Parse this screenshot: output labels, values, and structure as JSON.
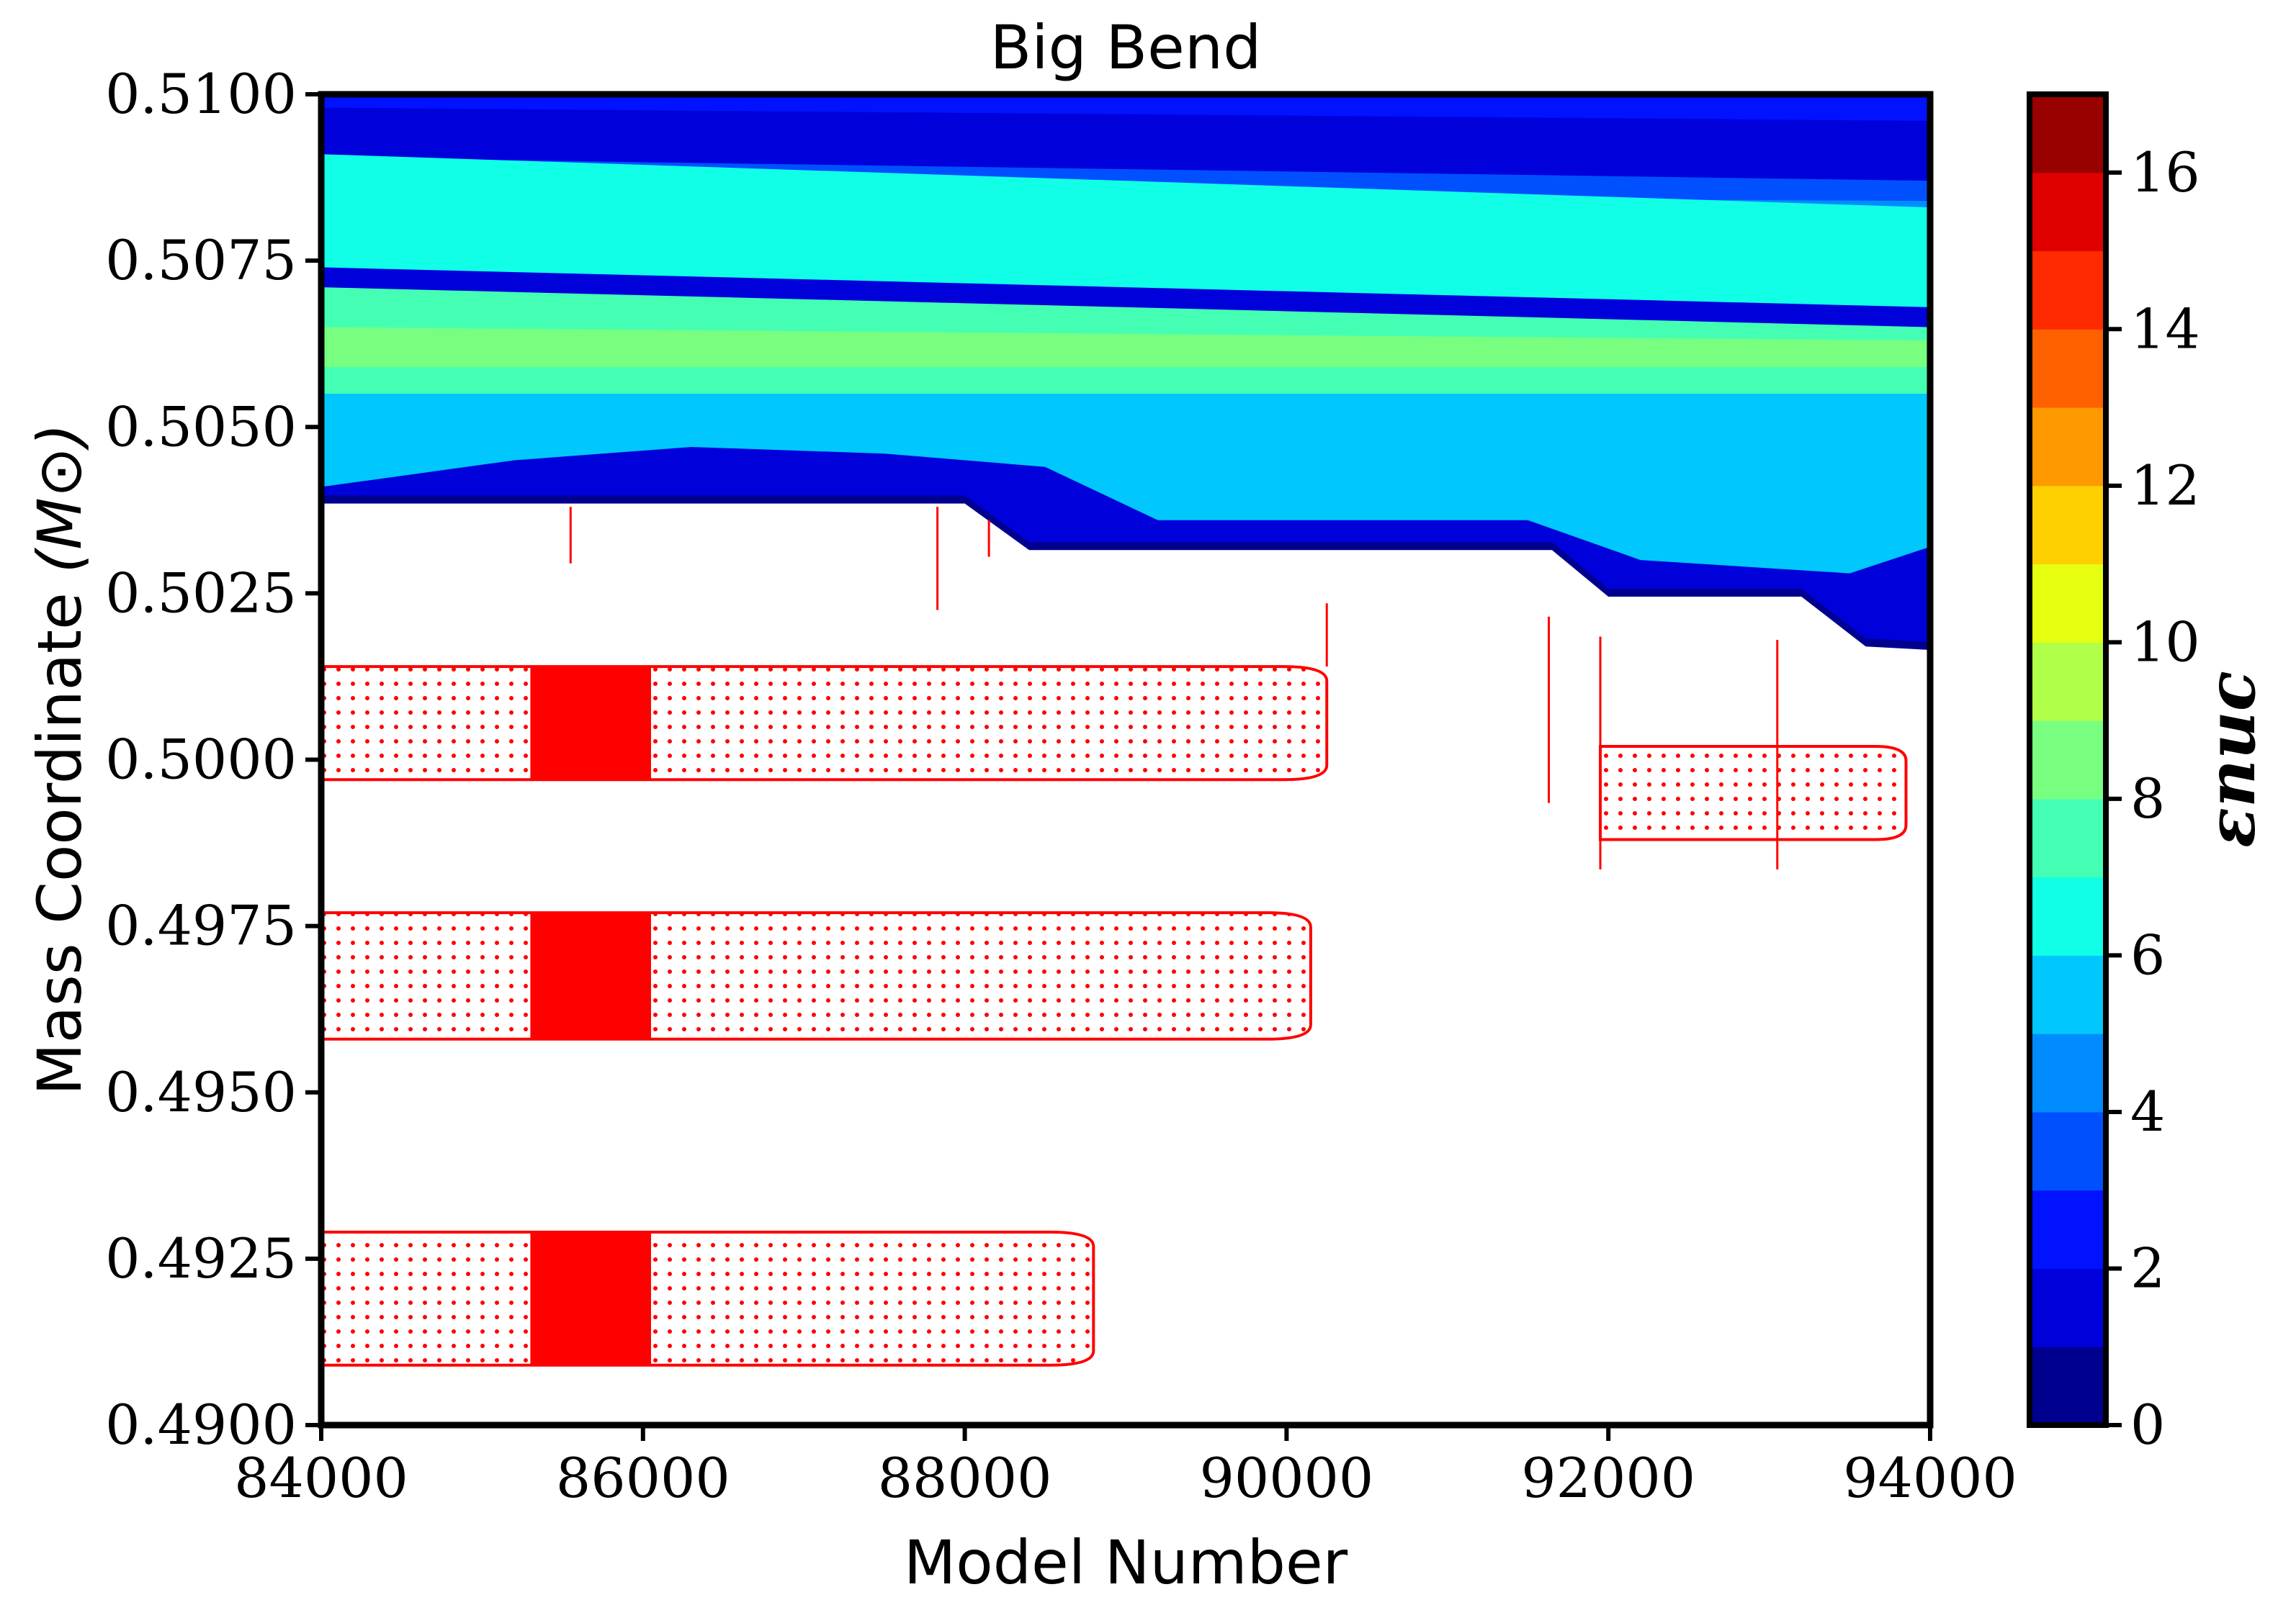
{
  "chart_data": {
    "type": "contour",
    "title": "Big Bend",
    "xlabel": "Model Number",
    "ylabel": "Mass Coordinate",
    "ylabel_symbol": "(M⊙)",
    "xlim": [
      84000,
      94000
    ],
    "ylim": [
      0.49,
      0.51
    ],
    "x_ticks": [
      "84000",
      "86000",
      "88000",
      "90000",
      "92000",
      "94000"
    ],
    "x_tick_values": [
      84000,
      86000,
      88000,
      90000,
      92000,
      94000
    ],
    "y_ticks": [
      "0.4900",
      "0.4925",
      "0.4950",
      "0.4975",
      "0.5000",
      "0.5025",
      "0.5050",
      "0.5075",
      "0.5100"
    ],
    "y_tick_values": [
      0.49,
      0.4925,
      0.495,
      0.4975,
      0.5,
      0.5025,
      0.505,
      0.5075,
      0.51
    ],
    "colorbar": {
      "label": "εnuc",
      "range": [
        0,
        17
      ],
      "ticks": [
        "0",
        "2",
        "4",
        "6",
        "8",
        "10",
        "12",
        "14",
        "16"
      ],
      "tick_values": [
        0,
        2,
        4,
        6,
        8,
        10,
        12,
        14,
        16
      ],
      "levels": [
        0,
        1,
        2,
        3,
        4,
        5,
        6,
        7,
        8,
        9,
        10,
        11,
        12,
        13,
        14,
        15,
        16,
        17
      ],
      "colors": [
        "#00008f",
        "#0000db",
        "#0012ff",
        "#0050ff",
        "#008cff",
        "#00c8ff",
        "#10ffe6",
        "#44ffb3",
        "#78ff80",
        "#b0ff48",
        "#e6ff10",
        "#ffd000",
        "#ff9900",
        "#ff6000",
        "#ff2a00",
        "#e00000",
        "#990000"
      ]
    },
    "burning_region": {
      "lower_boundary": [
        [
          84000,
          0.50385
        ],
        [
          88000,
          0.50385
        ],
        [
          88400,
          0.50315
        ],
        [
          91650,
          0.50315
        ],
        [
          92000,
          0.50245
        ],
        [
          93200,
          0.50245
        ],
        [
          93600,
          0.5017
        ],
        [
          94000,
          0.50165
        ]
      ],
      "bands": [
        {
          "level": 6,
          "lower": [
            [
              84000,
              0.5074
            ],
            [
              89000,
              0.5071
            ],
            [
              94000,
              0.5068
            ]
          ],
          "upper": [
            [
              84000,
              0.5091
            ],
            [
              94000,
              0.5083
            ]
          ]
        },
        {
          "level": 7,
          "lower": [
            [
              84000,
              0.5055
            ],
            [
              90000,
              0.5054
            ],
            [
              94000,
              0.5053
            ]
          ],
          "upper": [
            [
              84000,
              0.5071
            ],
            [
              94000,
              0.5065
            ]
          ]
        },
        {
          "level": 8,
          "lower": [
            [
              84000,
              0.5059
            ],
            [
              94000,
              0.5059
            ]
          ],
          "upper": [
            [
              84000,
              0.5065
            ],
            [
              94000,
              0.5063
            ]
          ]
        }
      ]
    },
    "convective_zones": [
      {
        "x_start": 84000,
        "x_end": 90250,
        "y_bottom": 0.4997,
        "y_top": 0.5014,
        "solid_x": [
          85300,
          86050
        ]
      },
      {
        "x_start": 84000,
        "x_end": 90150,
        "y_bottom": 0.4958,
        "y_top": 0.4977,
        "solid_x": [
          85300,
          86050
        ]
      },
      {
        "x_start": 84000,
        "x_end": 88800,
        "y_bottom": 0.4909,
        "y_top": 0.4929,
        "solid_x": [
          85300,
          86050
        ]
      },
      {
        "x_start": 91950,
        "x_end": 93850,
        "y_bottom": 0.4988,
        "y_top": 0.5002,
        "solid_x": []
      }
    ],
    "grid": false,
    "legend": "none"
  }
}
